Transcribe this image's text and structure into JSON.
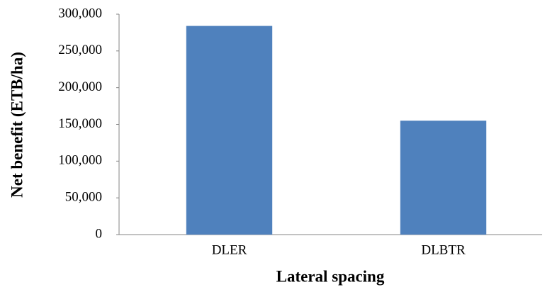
{
  "chart_data": {
    "type": "bar",
    "x_label": "Lateral spacing",
    "y_label": "Net benefit (ETB/ha)",
    "categories": [
      "DLER",
      "DLBTR"
    ],
    "values": [
      284000,
      155000
    ],
    "color": "#4f81bd",
    "ylim": [
      0,
      300000
    ],
    "yticks": [
      0,
      {
        "value": 50000,
        "label": "50,000"
      },
      {
        "value": 100000,
        "label": "100,000"
      },
      {
        "value": 150000,
        "label": "150,000"
      },
      {
        "value": 200000,
        "label": "200,000"
      },
      {
        "value": 250000,
        "label": "250,000"
      },
      {
        "value": 300000,
        "label": "300,000"
      }
    ],
    "grid": false
  }
}
